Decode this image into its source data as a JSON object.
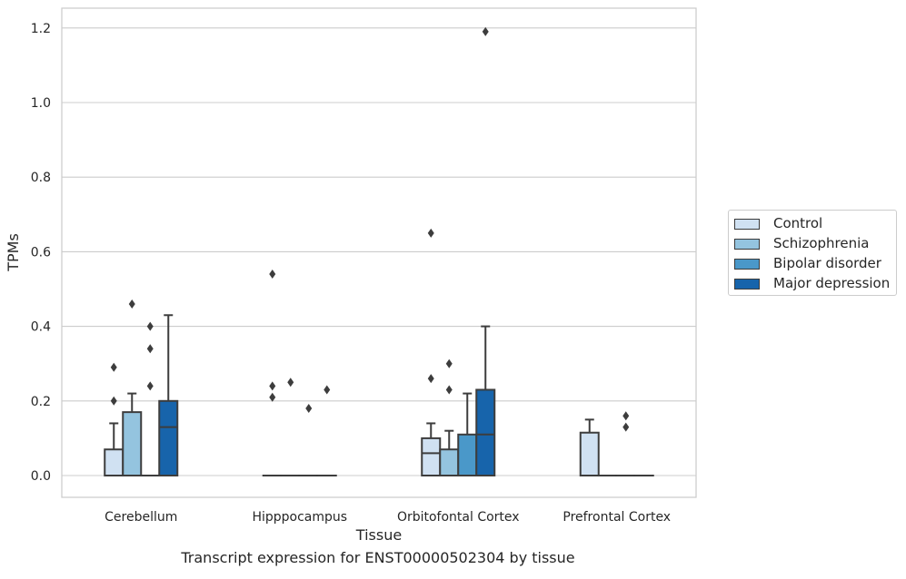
{
  "caption": "Transcript expression for ENST00000502304 by tissue",
  "chart_data": {
    "type": "box",
    "xlabel": "Tissue",
    "ylabel": "TPMs",
    "ylim": [
      -0.06,
      1.25
    ],
    "yticks": [
      0.0,
      0.2,
      0.4,
      0.6,
      0.8,
      1.0,
      1.2
    ],
    "ytick_labels": [
      "0.0",
      "0.2",
      "0.4",
      "0.6",
      "0.8",
      "1.0",
      "1.2"
    ],
    "grid": "horizontal",
    "legend_position": "right",
    "categories": [
      "Cerebellum",
      "Hipppocampus",
      "Orbitofontal Cortex",
      "Prefrontal Cortex"
    ],
    "series": [
      {
        "name": "Control",
        "color": "#d0e1f2",
        "boxes": [
          {
            "q1": 0.0,
            "median": 0.0,
            "q3": 0.07,
            "whisker_low": 0.0,
            "whisker_high": 0.14,
            "outliers": [
              0.2,
              0.29
            ]
          },
          {
            "q1": 0.0,
            "median": 0.0,
            "q3": 0.0,
            "whisker_low": 0.0,
            "whisker_high": 0.0,
            "outliers": [
              0.21,
              0.24,
              0.54
            ]
          },
          {
            "q1": 0.0,
            "median": 0.06,
            "q3": 0.1,
            "whisker_low": 0.0,
            "whisker_high": 0.14,
            "outliers": [
              0.26,
              0.65
            ]
          },
          {
            "q1": 0.0,
            "median": 0.0,
            "q3": 0.115,
            "whisker_low": 0.0,
            "whisker_high": 0.15,
            "outliers": []
          }
        ]
      },
      {
        "name": "Schizophrenia",
        "color": "#94c4df",
        "boxes": [
          {
            "q1": 0.0,
            "median": 0.0,
            "q3": 0.17,
            "whisker_low": 0.0,
            "whisker_high": 0.22,
            "outliers": [
              0.46
            ]
          },
          {
            "q1": 0.0,
            "median": 0.0,
            "q3": 0.0,
            "whisker_low": 0.0,
            "whisker_high": 0.0,
            "outliers": [
              0.25
            ]
          },
          {
            "q1": 0.0,
            "median": 0.0,
            "q3": 0.07,
            "whisker_low": 0.0,
            "whisker_high": 0.12,
            "outliers": [
              0.23,
              0.3
            ]
          },
          {
            "q1": 0.0,
            "median": 0.0,
            "q3": 0.0,
            "whisker_low": 0.0,
            "whisker_high": 0.0,
            "outliers": []
          }
        ]
      },
      {
        "name": "Bipolar disorder",
        "color": "#4a98c9",
        "boxes": [
          {
            "q1": 0.0,
            "median": 0.0,
            "q3": 0.0,
            "whisker_low": 0.0,
            "whisker_high": 0.0,
            "outliers": [
              0.24,
              0.34,
              0.4
            ]
          },
          {
            "q1": 0.0,
            "median": 0.0,
            "q3": 0.0,
            "whisker_low": 0.0,
            "whisker_high": 0.0,
            "outliers": [
              0.18
            ]
          },
          {
            "q1": 0.0,
            "median": 0.0,
            "q3": 0.11,
            "whisker_low": 0.0,
            "whisker_high": 0.22,
            "outliers": []
          },
          {
            "q1": 0.0,
            "median": 0.0,
            "q3": 0.0,
            "whisker_low": 0.0,
            "whisker_high": 0.0,
            "outliers": [
              0.13,
              0.16
            ]
          }
        ]
      },
      {
        "name": "Major depression",
        "color": "#1764ab",
        "boxes": [
          {
            "q1": 0.0,
            "median": 0.13,
            "q3": 0.2,
            "whisker_low": 0.0,
            "whisker_high": 0.43,
            "outliers": []
          },
          {
            "q1": 0.0,
            "median": 0.0,
            "q3": 0.0,
            "whisker_low": 0.0,
            "whisker_high": 0.0,
            "outliers": [
              0.23
            ]
          },
          {
            "q1": 0.0,
            "median": 0.11,
            "q3": 0.23,
            "whisker_low": 0.0,
            "whisker_high": 0.4,
            "outliers": [
              1.19
            ]
          },
          {
            "q1": 0.0,
            "median": 0.0,
            "q3": 0.0,
            "whisker_low": 0.0,
            "whisker_high": 0.0,
            "outliers": []
          }
        ]
      }
    ]
  }
}
